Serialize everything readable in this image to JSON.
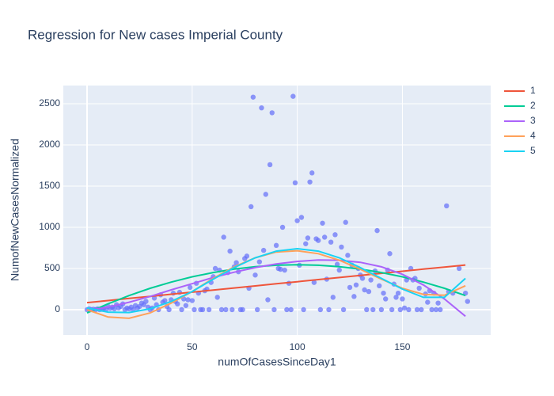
{
  "chart_data": {
    "type": "scatter",
    "title": "Regression for New cases Imperial County",
    "x_label": "numOfCasesSinceDay1",
    "y_label": "NumofNewCasesNormalized",
    "xlim": [
      -11.3,
      192
    ],
    "ylim": [
      -308,
      2721
    ],
    "xticks": [
      0,
      50,
      100,
      150
    ],
    "yticks": [
      0,
      500,
      1000,
      1500,
      2000,
      2500
    ],
    "grid": true,
    "series": [
      {
        "color": "#636efa",
        "mode": "markers",
        "x": [
          0,
          1,
          2,
          3,
          4,
          5,
          6,
          7,
          8,
          9,
          10,
          11,
          12,
          13,
          14,
          15,
          16,
          17,
          18,
          19,
          20,
          21,
          22,
          23,
          24,
          25,
          26,
          27,
          28,
          29,
          30,
          31,
          32,
          33,
          34,
          35,
          36,
          37,
          38,
          39,
          40,
          41,
          42,
          43,
          44,
          45,
          46,
          47,
          48,
          49,
          50,
          51,
          52,
          53,
          54,
          55,
          56,
          57,
          58,
          59,
          60,
          61,
          62,
          63,
          64,
          65,
          66,
          67,
          68,
          69,
          70,
          71,
          72,
          73,
          74,
          75,
          76,
          77,
          78,
          79,
          80,
          81,
          82,
          83,
          84,
          85,
          86,
          87,
          88,
          89,
          90,
          91,
          92,
          93,
          94,
          95,
          96,
          97,
          98,
          99,
          100,
          101,
          102,
          103,
          104,
          105,
          106,
          107,
          108,
          109,
          110,
          111,
          112,
          113,
          114,
          115,
          116,
          117,
          118,
          119,
          120,
          121,
          122,
          123,
          124,
          125,
          126,
          127,
          128,
          129,
          130,
          131,
          132,
          133,
          134,
          135,
          136,
          137,
          138,
          139,
          140,
          141,
          142,
          143,
          144,
          145,
          146,
          147,
          148,
          149,
          150,
          151,
          152,
          153,
          154,
          155,
          156,
          157,
          158,
          159,
          171,
          161,
          162,
          163,
          164,
          165,
          166,
          167,
          168,
          177,
          172,
          174,
          180,
          181
        ],
        "values": [
          0,
          10,
          0,
          5,
          0,
          10,
          0,
          5,
          20,
          0,
          40,
          15,
          30,
          10,
          60,
          20,
          40,
          70,
          0,
          20,
          10,
          30,
          0,
          50,
          20,
          40,
          80,
          60,
          100,
          30,
          0,
          20,
          140,
          60,
          0,
          180,
          90,
          110,
          40,
          0,
          120,
          200,
          100,
          70,
          210,
          0,
          130,
          50,
          120,
          270,
          110,
          0,
          320,
          200,
          0,
          0,
          230,
          250,
          0,
          330,
          400,
          500,
          150,
          480,
          0,
          880,
          0,
          450,
          710,
          0,
          520,
          570,
          460,
          0,
          0,
          620,
          650,
          260,
          1250,
          2580,
          420,
          0,
          580,
          2450,
          720,
          1400,
          120,
          1760,
          2390,
          0,
          780,
          500,
          490,
          1000,
          480,
          0,
          320,
          0,
          2590,
          1540,
          1080,
          540,
          1120,
          0,
          800,
          870,
          1550,
          1660,
          330,
          860,
          840,
          0,
          1050,
          880,
          370,
          0,
          820,
          150,
          910,
          550,
          480,
          760,
          0,
          1060,
          660,
          270,
          540,
          160,
          300,
          500,
          420,
          380,
          240,
          0,
          220,
          360,
          0,
          470,
          960,
          290,
          0,
          200,
          130,
          480,
          680,
          0,
          310,
          150,
          200,
          0,
          130,
          20,
          360,
          0,
          500,
          360,
          380,
          0,
          260,
          0,
          1260,
          190,
          90,
          230,
          0,
          200,
          0,
          80,
          0,
          500,
          220,
          200,
          200,
          100
        ]
      },
      {
        "name": "1",
        "color": "#EF553B",
        "mode": "lines",
        "x": [
          0,
          10,
          20,
          30,
          40,
          50,
          60,
          70,
          80,
          90,
          100,
          110,
          120,
          130,
          140,
          150,
          160,
          170,
          180
        ],
        "values": [
          85,
          110,
          136,
          161,
          187,
          212,
          237,
          263,
          288,
          314,
          339,
          365,
          390,
          415,
          441,
          466,
          492,
          517,
          542
        ]
      },
      {
        "name": "2",
        "color": "#00cc96",
        "mode": "lines",
        "x": [
          0,
          10,
          20,
          30,
          40,
          50,
          60,
          70,
          80,
          90,
          100,
          110,
          120,
          130,
          140,
          150,
          160,
          170,
          180
        ],
        "values": [
          -40,
          71,
          171,
          259,
          334,
          399,
          451,
          492,
          522,
          539,
          545,
          539,
          522,
          492,
          451,
          399,
          334,
          259,
          171
        ]
      },
      {
        "name": "3",
        "color": "#ab63fa",
        "mode": "lines",
        "x": [
          0,
          10,
          20,
          30,
          40,
          50,
          60,
          70,
          80,
          90,
          100,
          110,
          120,
          130,
          140,
          150,
          160,
          170,
          180
        ],
        "values": [
          -10,
          30,
          90,
          160,
          240,
          315,
          390,
          455,
          510,
          555,
          585,
          603,
          600,
          575,
          520,
          430,
          300,
          130,
          -80
        ]
      },
      {
        "name": "4",
        "color": "#FFA15A",
        "mode": "lines",
        "x": [
          0,
          10,
          20,
          30,
          40,
          50,
          60,
          70,
          80,
          90,
          100,
          110,
          120,
          130,
          140,
          150,
          160,
          170,
          180
        ],
        "values": [
          0,
          -90,
          -105,
          -40,
          80,
          220,
          380,
          520,
          630,
          700,
          715,
          680,
          600,
          490,
          370,
          260,
          185,
          175,
          290
        ]
      },
      {
        "name": "5",
        "color": "#19d3f3",
        "mode": "lines",
        "x": [
          0,
          10,
          20,
          30,
          40,
          50,
          60,
          70,
          80,
          90,
          100,
          110,
          120,
          130,
          140,
          150,
          160,
          170,
          180
        ],
        "values": [
          20,
          -30,
          -35,
          10,
          100,
          220,
          370,
          510,
          630,
          710,
          740,
          710,
          630,
          510,
          380,
          250,
          150,
          150,
          380
        ]
      }
    ]
  }
}
